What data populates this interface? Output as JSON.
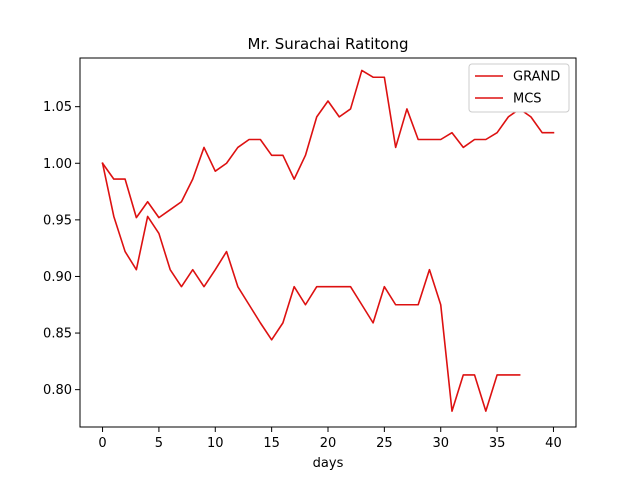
{
  "chart_data": {
    "type": "line",
    "title": "Mr. Surachai Ratitong",
    "xlabel": "days",
    "ylabel": "",
    "xlim": [
      -2,
      42
    ],
    "ylim": [
      0.767,
      1.093
    ],
    "xticks": [
      0,
      5,
      10,
      15,
      20,
      25,
      30,
      35,
      40
    ],
    "yticks": [
      0.8,
      0.85,
      0.9,
      0.95,
      1.0,
      1.05
    ],
    "ytick_labels": [
      "0.80",
      "0.85",
      "0.90",
      "0.95",
      "1.00",
      "1.05"
    ],
    "grid": false,
    "legend": "top-right",
    "series": [
      {
        "name": "GRAND",
        "color": "#dd1111",
        "x": [
          0,
          1,
          2,
          3,
          4,
          5,
          6,
          7,
          8,
          9,
          10,
          11,
          12,
          13,
          14,
          15,
          16,
          17,
          18,
          19,
          20,
          21,
          22,
          23,
          24,
          25,
          26,
          27,
          28,
          29,
          30,
          31,
          32,
          33,
          34,
          35,
          36,
          37,
          38,
          39,
          40
        ],
        "values": [
          1.0,
          0.986,
          0.986,
          0.952,
          0.966,
          0.952,
          0.959,
          0.966,
          0.986,
          1.014,
          0.993,
          1.0,
          1.014,
          1.021,
          1.021,
          1.007,
          1.007,
          0.986,
          1.007,
          1.041,
          1.055,
          1.041,
          1.048,
          1.082,
          1.076,
          1.076,
          1.014,
          1.048,
          1.021,
          1.021,
          1.021,
          1.027,
          1.014,
          1.021,
          1.021,
          1.027,
          1.041,
          1.048,
          1.041,
          1.027,
          1.027
        ]
      },
      {
        "name": "MCS",
        "color": "#dd1111",
        "x": [
          0,
          1,
          2,
          3,
          4,
          5,
          6,
          7,
          8,
          9,
          10,
          11,
          12,
          13,
          14,
          15,
          16,
          17,
          18,
          19,
          20,
          21,
          22,
          23,
          24,
          25,
          26,
          27,
          28,
          29,
          30,
          31,
          32,
          33,
          34,
          35,
          36,
          37
        ],
        "values": [
          1.0,
          0.953,
          0.922,
          0.906,
          0.953,
          0.938,
          0.906,
          0.891,
          0.906,
          0.891,
          0.906,
          0.922,
          0.891,
          0.875,
          0.859,
          0.844,
          0.859,
          0.891,
          0.875,
          0.891,
          0.891,
          0.891,
          0.891,
          0.875,
          0.859,
          0.891,
          0.875,
          0.875,
          0.875,
          0.906,
          0.875,
          0.781,
          0.813,
          0.813,
          0.781,
          0.813,
          0.813,
          0.813
        ]
      }
    ]
  }
}
